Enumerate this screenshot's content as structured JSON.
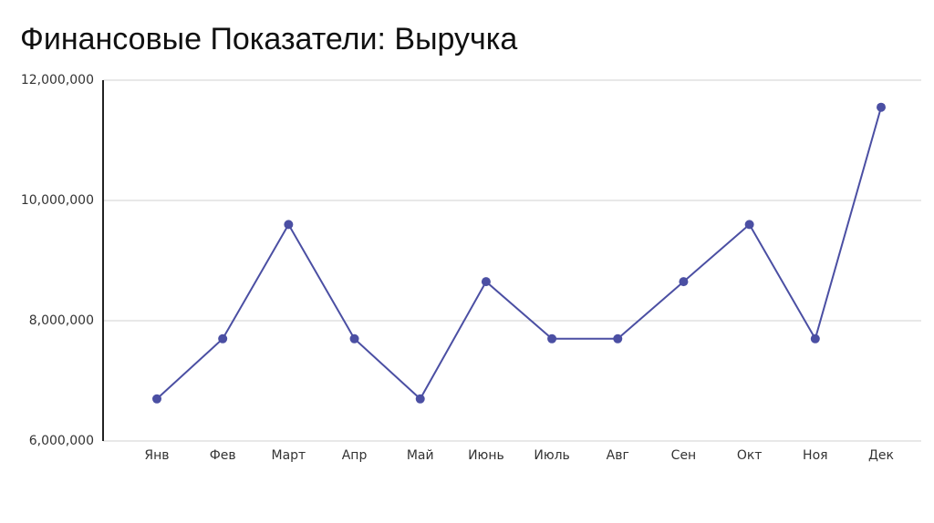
{
  "chart_data": {
    "type": "line",
    "title": "Финансовые Показатели: Выручка",
    "categories": [
      "Янв",
      "Фев",
      "Март",
      "Апр",
      "Май",
      "Июнь",
      "Июль",
      "Авг",
      "Сен",
      "Окт",
      "Ноя",
      "Дек"
    ],
    "series": [
      {
        "name": "Выручка",
        "color": "#4b4fa3",
        "values": [
          6700000,
          7700000,
          9600000,
          7700000,
          6700000,
          8650000,
          7700000,
          7700000,
          8650000,
          9600000,
          7700000,
          11550000
        ]
      }
    ],
    "ylim": [
      6000000,
      12000000
    ],
    "yticks": [
      {
        "value": 6000000,
        "label": "6,000,000"
      },
      {
        "value": 8000000,
        "label": "8,000,000"
      },
      {
        "value": 10000000,
        "label": "10,000,000"
      },
      {
        "value": 12000000,
        "label": "12,000,000"
      }
    ],
    "grid": true
  }
}
